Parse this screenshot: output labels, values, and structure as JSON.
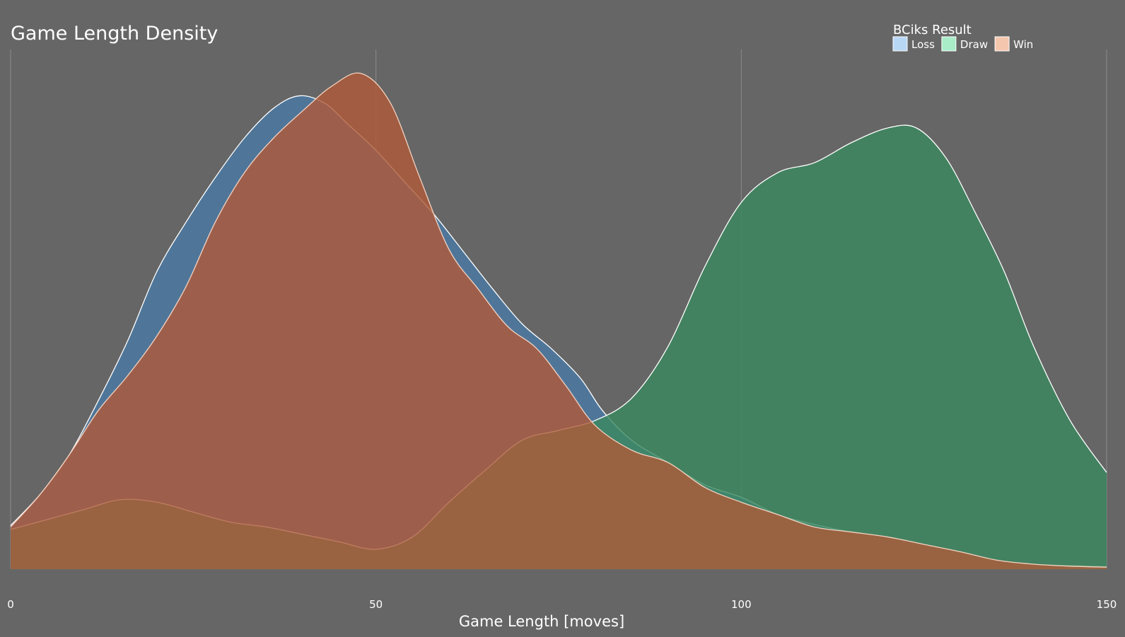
{
  "chart_data": {
    "type": "area",
    "title": "Game Length Density",
    "xlabel": "Game Length [moves]",
    "ylabel": "",
    "xlim": [
      0,
      150
    ],
    "ylim": [
      0,
      1
    ],
    "xticks": [
      0,
      50,
      100,
      150
    ],
    "grid": "vertical",
    "legend": {
      "title": "BCiks Result",
      "placement": "top-right",
      "entries": [
        "Loss",
        "Draw",
        "Win"
      ]
    },
    "colors": {
      "background": "#666666",
      "grid": "#8a8a8a",
      "text": "#ffffff"
    },
    "series": [
      {
        "name": "Loss",
        "legend_color": "#b7d7f4",
        "fill": "#4a7ba6",
        "opacity": 0.8,
        "stroke": "#ffffff",
        "x": [
          0,
          4,
          8,
          12,
          16,
          20,
          24,
          28,
          32,
          36,
          39.5,
          43,
          46,
          50,
          54,
          58,
          62,
          66,
          70,
          74,
          78,
          81,
          85,
          90,
          95,
          100,
          105,
          110,
          115,
          120,
          125,
          130,
          135,
          140,
          145,
          150
        ],
        "y": [
          0.088,
          0.15,
          0.23,
          0.34,
          0.46,
          0.6,
          0.7,
          0.79,
          0.87,
          0.93,
          0.955,
          0.94,
          0.9,
          0.845,
          0.78,
          0.715,
          0.64,
          0.565,
          0.495,
          0.445,
          0.385,
          0.32,
          0.26,
          0.215,
          0.17,
          0.145,
          0.11,
          0.09,
          0.075,
          0.065,
          0.05,
          0.035,
          0.018,
          0.01,
          0.007,
          0.005
        ]
      },
      {
        "name": "Draw",
        "legend_color": "#a8ecc8",
        "fill": "#3a8a5f",
        "opacity": 0.8,
        "stroke": "#ffffff",
        "x": [
          0,
          5,
          10,
          15,
          20,
          25,
          30,
          35,
          40,
          45,
          50,
          55,
          60,
          65,
          70,
          75,
          80,
          85,
          90,
          95,
          100,
          105,
          110,
          115,
          120,
          124,
          128,
          132,
          136,
          140,
          145,
          150
        ],
        "y": [
          0.08,
          0.1,
          0.12,
          0.14,
          0.135,
          0.115,
          0.095,
          0.085,
          0.07,
          0.055,
          0.04,
          0.065,
          0.135,
          0.2,
          0.26,
          0.28,
          0.3,
          0.345,
          0.45,
          0.61,
          0.74,
          0.8,
          0.82,
          0.86,
          0.89,
          0.89,
          0.83,
          0.72,
          0.6,
          0.45,
          0.3,
          0.195
        ]
      },
      {
        "name": "Win",
        "legend_color": "#f5c6ae",
        "fill": "#b05a38",
        "opacity": 0.8,
        "stroke": "#f5d2c0",
        "x": [
          0,
          4,
          8,
          12,
          16,
          20,
          24,
          28,
          32,
          36,
          40,
          44,
          48,
          52,
          56,
          60,
          64,
          68,
          72,
          76,
          80,
          85,
          90,
          95,
          100,
          105,
          110,
          115,
          120,
          125,
          130,
          135,
          140,
          145,
          150
        ],
        "y": [
          0.085,
          0.15,
          0.23,
          0.32,
          0.39,
          0.47,
          0.57,
          0.7,
          0.8,
          0.87,
          0.925,
          0.975,
          1.0,
          0.94,
          0.79,
          0.645,
          0.565,
          0.49,
          0.445,
          0.37,
          0.29,
          0.24,
          0.215,
          0.165,
          0.135,
          0.11,
          0.085,
          0.075,
          0.065,
          0.05,
          0.035,
          0.018,
          0.01,
          0.006,
          0.004
        ]
      }
    ]
  }
}
